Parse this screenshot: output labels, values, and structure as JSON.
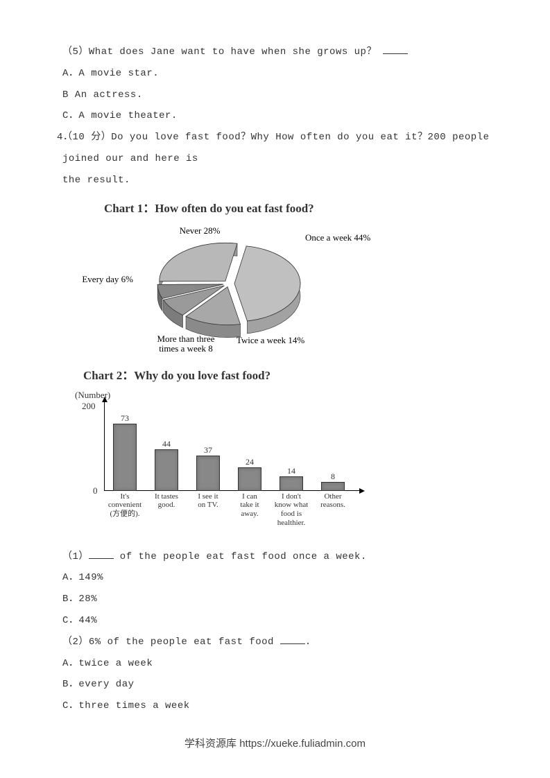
{
  "q5": {
    "prompt_prefix": "（5）What does Jane want to have when she grows up？",
    "options": {
      "a": "A．A movie star.",
      "b": "B An actress.",
      "c": "C．A movie theater."
    }
  },
  "q4": {
    "number": "4．",
    "prompt_line1": "（10 分）Do you love fast food？Why How often do you eat it？200 people joined our and here is",
    "prompt_line2": "the result."
  },
  "chart1": {
    "type": "pie",
    "title": "Chart 1：How often do you eat fast food?",
    "slices": [
      {
        "label": "Never 28%",
        "value": 28,
        "color": "#b8b8b8"
      },
      {
        "label": "Once a week 44%",
        "value": 44,
        "color": "#c0c0c0"
      },
      {
        "label": "Twice a week 14%",
        "value": 14,
        "color": "#a8a8a8"
      },
      {
        "label": "More than three times a week 8",
        "value": 8,
        "color": "#9a9a9a"
      },
      {
        "label": "Every day 6%",
        "value": 6,
        "color": "#888888"
      }
    ],
    "labels": {
      "never": "Never 28%",
      "once": "Once a week 44%",
      "twice": "Twice a week 14%",
      "more_l1": "More than three",
      "more_l2": "times a week 8",
      "everyday": "Every day 6%"
    },
    "edge_color": "#333333",
    "background": "#ffffff"
  },
  "chart2": {
    "type": "bar",
    "title": "Chart 2：Why do you love fast food?",
    "ylabel": "(Number)",
    "ymax": 200,
    "yticks": [
      0,
      200
    ],
    "bar_color": "#888888",
    "bar_border": "#333333",
    "axis_color": "#000000",
    "bars": [
      {
        "label_l1": "It's",
        "label_l2": "convenient",
        "label_l3": "(方便的).",
        "value": 73
      },
      {
        "label_l1": "It tastes",
        "label_l2": "good.",
        "label_l3": "",
        "value": 44
      },
      {
        "label_l1": "I see it",
        "label_l2": "on TV.",
        "label_l3": "",
        "value": 37
      },
      {
        "label_l1": "I can",
        "label_l2": "take it",
        "label_l3": "away.",
        "value": 24
      },
      {
        "label_l1": "I don't",
        "label_l2": "know what",
        "label_l3": "food is",
        "label_l4": "healthier.",
        "value": 14
      },
      {
        "label_l1": "Other",
        "label_l2": "reasons.",
        "label_l3": "",
        "value": 8
      }
    ]
  },
  "sub_q1": {
    "prompt_suffix": " of the people eat fast food once a week.",
    "prompt_prefix": "（1）",
    "options": {
      "a": "A．149%",
      "b": "B．28%",
      "c": "C．44%"
    }
  },
  "sub_q2": {
    "prompt_prefix": "（2）6% of the people eat fast food ",
    "prompt_suffix": ".",
    "options": {
      "a": "A．twice a week",
      "b": "B．every day",
      "c": "C．three times a week"
    }
  },
  "footer": "学科资源库 https://xueke.fuliadmin.com"
}
